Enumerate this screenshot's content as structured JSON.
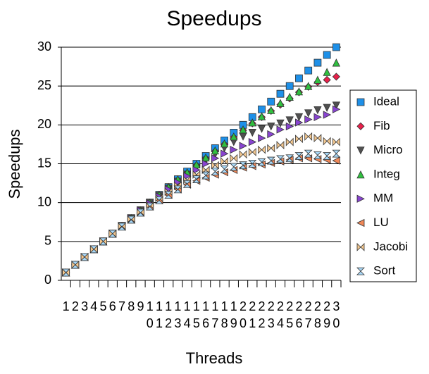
{
  "chart_data": {
    "type": "scatter",
    "title": "Speedups",
    "x_label": "Threads",
    "y_label": "Speedups",
    "categories": [
      "1",
      "2",
      "3",
      "4",
      "5",
      "6",
      "7",
      "8",
      "9",
      "10",
      "11",
      "12",
      "13",
      "14",
      "15",
      "16",
      "17",
      "18",
      "19",
      "20",
      "21",
      "22",
      "23",
      "24",
      "25",
      "26",
      "27",
      "28",
      "29",
      "30"
    ],
    "series": [
      {
        "name": "Ideal",
        "color": "#1e90e8",
        "marker": "square",
        "values": [
          1,
          2,
          3,
          4,
          5,
          6,
          7,
          8,
          9,
          10,
          11,
          12,
          13,
          14,
          15,
          16,
          17,
          18,
          19,
          20,
          21,
          22,
          23,
          24,
          25,
          26,
          27,
          28,
          29,
          30
        ]
      },
      {
        "name": "Fib",
        "color": "#e8204a",
        "marker": "diamond",
        "values": [
          1,
          2,
          3,
          4,
          5,
          6,
          7,
          8,
          9,
          10,
          11,
          12,
          12.9,
          13.8,
          14.8,
          15.7,
          16.6,
          17.5,
          18.4,
          19.3,
          20.2,
          21,
          21.8,
          22.6,
          23.4,
          24.2,
          24.9,
          25.5,
          25.8,
          26.2
        ]
      },
      {
        "name": "Micro",
        "color": "#505050",
        "marker": "triangle-down",
        "values": [
          1,
          2,
          3,
          4,
          5,
          6,
          7,
          8,
          9,
          10,
          10.9,
          11.8,
          12.7,
          13.6,
          14.5,
          15.4,
          16.2,
          17,
          17.8,
          18.5,
          19,
          19.5,
          19.8,
          20.2,
          20.6,
          21,
          21.5,
          21.9,
          22.2,
          22.5
        ]
      },
      {
        "name": "Integ",
        "color": "#30c040",
        "marker": "triangle-up",
        "values": [
          1,
          2,
          3,
          4,
          5,
          6,
          7,
          8,
          9,
          10,
          11,
          12,
          13,
          13.9,
          14.9,
          15.8,
          16.7,
          17.6,
          18.5,
          19.4,
          20.3,
          21.1,
          21.9,
          22.8,
          23.6,
          24.3,
          25,
          25.8,
          26.8,
          28
        ]
      },
      {
        "name": "MM",
        "color": "#8844d0",
        "marker": "triangle-right",
        "values": [
          1,
          2,
          3,
          4,
          5,
          6,
          7,
          8,
          9,
          9.9,
          10.8,
          11.7,
          12.6,
          13.4,
          14.2,
          15,
          15.7,
          16.3,
          16.8,
          17.3,
          17.8,
          18.3,
          18.8,
          19.4,
          19.8,
          20.3,
          20.7,
          21,
          21.3,
          22
        ]
      },
      {
        "name": "LU",
        "color": "#f08858",
        "marker": "triangle-left",
        "values": [
          1,
          2,
          3,
          4,
          5,
          6,
          6.9,
          7.8,
          8.7,
          9.5,
          10.3,
          11,
          11.7,
          12.3,
          12.8,
          13.2,
          13.6,
          13.9,
          14.2,
          14.5,
          14.7,
          14.9,
          15.1,
          15.3,
          15.5,
          15.7,
          15.7,
          15.6,
          15.5,
          15.4
        ]
      },
      {
        "name": "Jacobi",
        "color": "#f4c890",
        "marker": "bowtie",
        "values": [
          1,
          2,
          3,
          4,
          5,
          6,
          7,
          7.9,
          8.8,
          9.7,
          10.6,
          11.4,
          12.2,
          12.9,
          13.6,
          14.2,
          14.8,
          15.3,
          15.7,
          16.2,
          16.5,
          16.8,
          17,
          17.4,
          17.8,
          18.2,
          18.5,
          18.3,
          17.9,
          17.8
        ]
      },
      {
        "name": "Sort",
        "color": "#a8d8f8",
        "marker": "hourglass",
        "values": [
          1,
          2,
          3,
          4,
          5,
          6,
          6.9,
          7.8,
          8.7,
          9.5,
          10.3,
          11,
          11.7,
          12.4,
          13,
          13.5,
          14,
          14.3,
          14.6,
          14.8,
          15,
          15.2,
          15.4,
          15.6,
          15.7,
          16,
          16.3,
          16.1,
          16,
          16.3
        ]
      }
    ],
    "ylim": [
      0,
      30
    ],
    "yticks": [
      0,
      5,
      10,
      15,
      20,
      25,
      30
    ],
    "grid": true,
    "legend": "right"
  }
}
